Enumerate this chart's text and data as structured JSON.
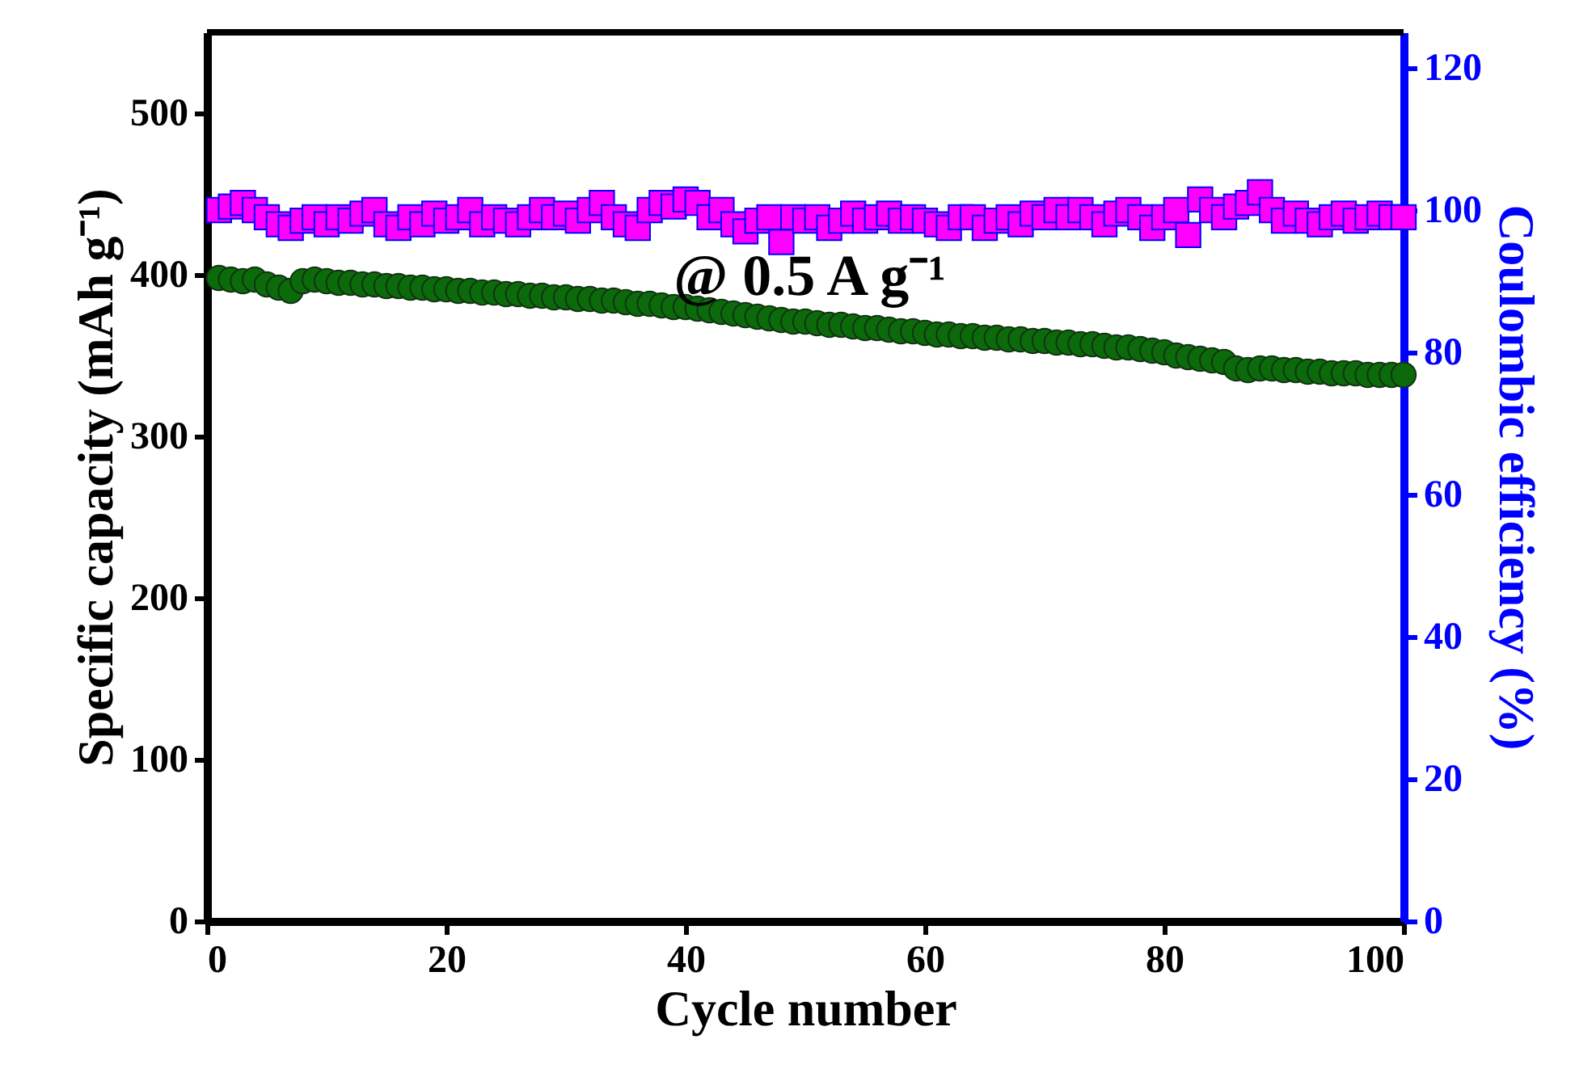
{
  "chart_data": {
    "type": "scatter",
    "xlabel": "Cycle number",
    "ylabel": "Specific capacity (mAh g⁻¹)",
    "y2label": "Coulombic efficiency (%)",
    "x": [
      1,
      2,
      3,
      4,
      5,
      6,
      7,
      8,
      9,
      10,
      11,
      12,
      13,
      14,
      15,
      16,
      17,
      18,
      19,
      20,
      21,
      22,
      23,
      24,
      25,
      26,
      27,
      28,
      29,
      30,
      31,
      32,
      33,
      34,
      35,
      36,
      37,
      38,
      39,
      40,
      41,
      42,
      43,
      44,
      45,
      46,
      47,
      48,
      49,
      50,
      51,
      52,
      53,
      54,
      55,
      56,
      57,
      58,
      59,
      60,
      61,
      62,
      63,
      64,
      65,
      66,
      67,
      68,
      69,
      70,
      71,
      72,
      73,
      74,
      75,
      76,
      77,
      78,
      79,
      80,
      81,
      82,
      83,
      84,
      85,
      86,
      87,
      88,
      89,
      90,
      91,
      92,
      93,
      94,
      95,
      96,
      97,
      98,
      99,
      100
    ],
    "series": [
      {
        "color": "#0b6b0b",
        "marker": "circle",
        "values": [
          398,
          397,
          396,
          397,
          394,
          392,
          390,
          396,
          397,
          396,
          395,
          395,
          394,
          394,
          393,
          393,
          392,
          392,
          391,
          391,
          390,
          390,
          389,
          389,
          388,
          388,
          387,
          387,
          386,
          386,
          385,
          385,
          384,
          384,
          383,
          382,
          382,
          381,
          380,
          380,
          379,
          378,
          377,
          376,
          375,
          374,
          373,
          372,
          371,
          371,
          370,
          369,
          369,
          368,
          367,
          367,
          366,
          365,
          365,
          364,
          363,
          363,
          362,
          362,
          361,
          361,
          360,
          360,
          359,
          359,
          358,
          358,
          357,
          357,
          356,
          355,
          355,
          354,
          353,
          352,
          350,
          349,
          348,
          347,
          346,
          342,
          341,
          342,
          342,
          341,
          341,
          340,
          340,
          339,
          339,
          339,
          338,
          338,
          338,
          338
        ]
      },
      {
        "color": "#ff00ff",
        "marker": "square",
        "axis": "y2",
        "values": [
          100,
          100.5,
          101,
          100,
          99,
          98,
          97.5,
          98.5,
          99,
          98,
          99,
          98.5,
          99.5,
          100,
          98,
          97.5,
          99,
          98,
          99.5,
          98.5,
          99,
          100,
          98,
          99,
          98.5,
          98,
          99,
          100,
          99,
          99.5,
          98.5,
          100,
          101,
          99,
          98,
          97.5,
          100,
          101,
          100.5,
          101.5,
          101,
          99,
          100,
          98,
          97,
          98.5,
          99,
          95.5,
          99,
          98.5,
          99,
          97.5,
          98.5,
          99.5,
          98.5,
          99,
          99.5,
          98.5,
          99,
          98.5,
          98,
          97.5,
          99,
          99,
          97.5,
          98.5,
          99,
          98,
          99.5,
          99,
          100,
          99,
          100,
          99,
          98,
          99.5,
          100,
          99,
          97.5,
          99,
          100,
          96.5,
          101.5,
          100,
          99,
          100.5,
          101,
          102.5,
          100,
          98.5,
          99.5,
          98.5,
          98,
          99,
          99.5,
          98.5,
          99,
          99.5,
          99,
          99
        ]
      }
    ],
    "xlim": [
      0,
      100
    ],
    "xticks": [
      0,
      20,
      40,
      60,
      80,
      100
    ],
    "ylim": [
      0,
      550
    ],
    "yticks": [
      0,
      100,
      200,
      300,
      400,
      500
    ],
    "y2lim": [
      0,
      125
    ],
    "y2ticks": [
      0,
      20,
      40,
      60,
      80,
      100,
      120
    ],
    "annotations": [
      "@ 0.5 A g⁻¹"
    ],
    "grid": false
  }
}
